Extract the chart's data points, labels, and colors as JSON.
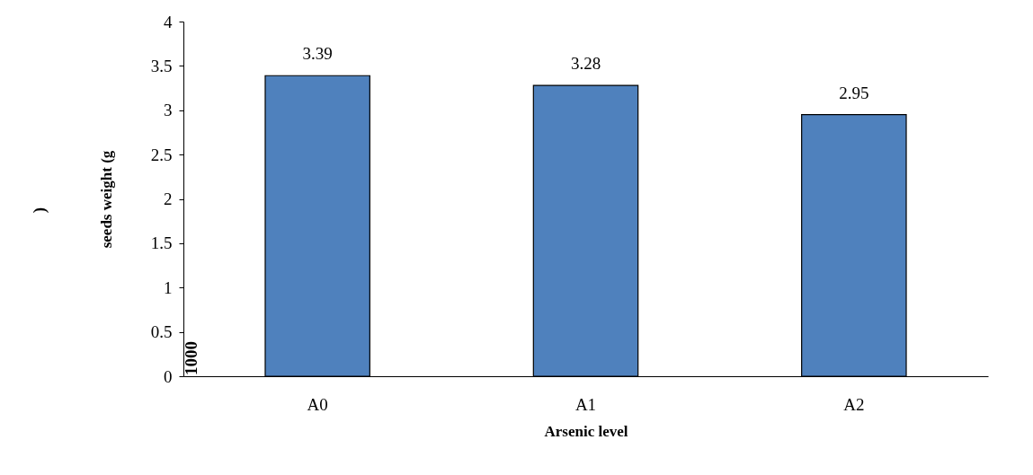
{
  "chart_data": {
    "type": "bar",
    "xlabel": "Arsenic level",
    "ylabel": "seeds weight (g",
    "annotations": [
      "1000",
      ")"
    ],
    "categories": [
      "A0",
      "A1",
      "A2"
    ],
    "values": [
      3.39,
      3.28,
      2.95
    ],
    "color": "#4f81bd",
    "ylim": [
      0,
      4
    ],
    "yticks": [
      0,
      0.5,
      1,
      1.5,
      2,
      2.5,
      3,
      3.5,
      4
    ],
    "grid": false,
    "data_labels": true
  }
}
